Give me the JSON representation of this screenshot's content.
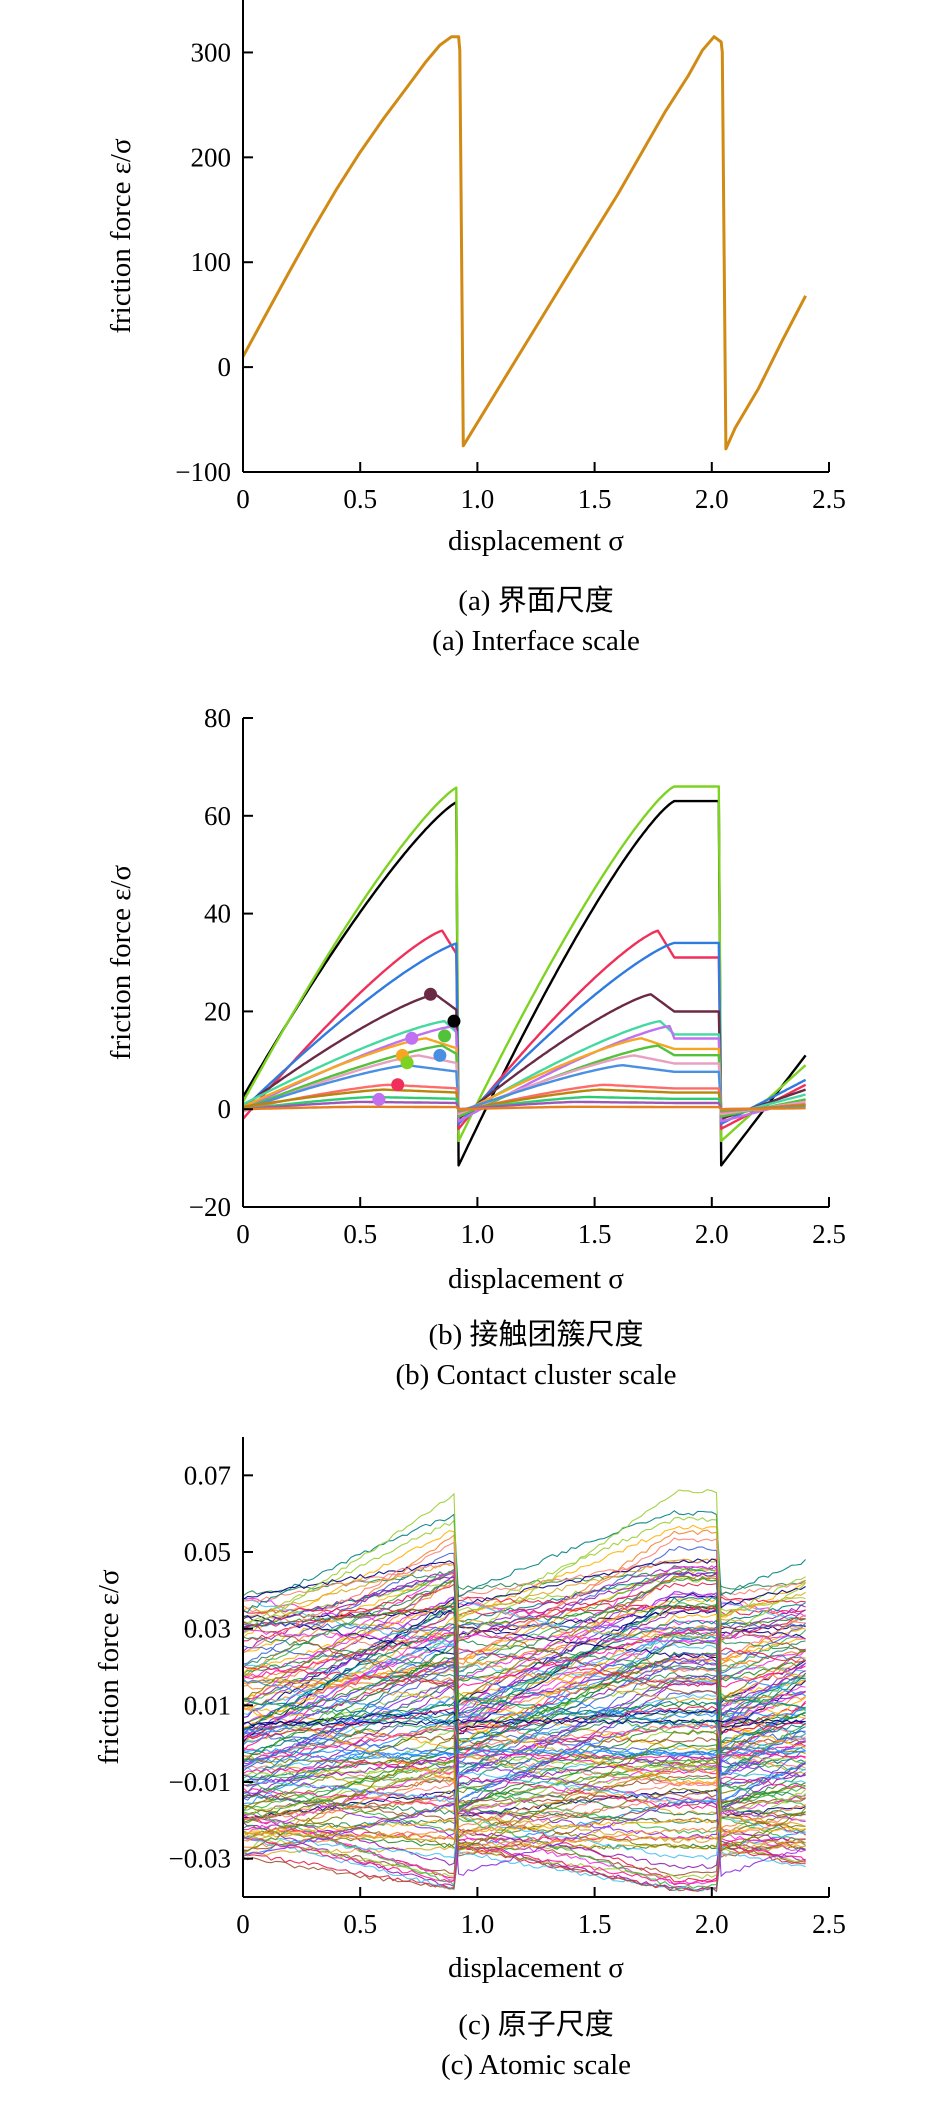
{
  "colors": {
    "panel_a_line": "#D18A14",
    "panel_b_palette": [
      "#000000",
      "#7ED321",
      "#F0305A",
      "#2F7BE0",
      "#6B2A44",
      "#43D9A0",
      "#C070F0",
      "#F5A623",
      "#52C23B",
      "#E8A0C0",
      "#4A90E2",
      "#FF6B6B",
      "#B8860B",
      "#2ECC71",
      "#9B59B6",
      "#E67E22"
    ],
    "panel_c_palette": [
      "#E6194B",
      "#3CB44B",
      "#FFB000",
      "#4363D8",
      "#F58231",
      "#911EB4",
      "#46C0F0",
      "#F032E6",
      "#9ACD32",
      "#FA8072",
      "#008080",
      "#8A2BE2",
      "#A0522D",
      "#2E8B57",
      "#1E90FF",
      "#DAA520",
      "#FF1493",
      "#228B22",
      "#000080",
      "#808000"
    ]
  },
  "chart_data": [
    {
      "type": "line",
      "panel": "a",
      "caption_cn": "(a) 界面尺度",
      "caption_en": "(a) Interface scale",
      "xlabel": "displacement σ",
      "ylabel": "friction force ε/σ",
      "xlim": [
        0,
        2.5
      ],
      "ylim": [
        -100,
        350
      ],
      "xticks": [
        "0",
        "0.5",
        "1.0",
        "1.5",
        "2.0",
        "2.5"
      ],
      "xtick_values": [
        0,
        0.5,
        1.0,
        1.5,
        2.0,
        2.5
      ],
      "yticks": [
        "−100",
        "0",
        "100",
        "200",
        "300"
      ],
      "ytick_values": [
        -100,
        0,
        100,
        200,
        300
      ],
      "series": [
        {
          "x": [
            0,
            0.1,
            0.2,
            0.3,
            0.4,
            0.5,
            0.6,
            0.7,
            0.78,
            0.84,
            0.89,
            0.92,
            0.925,
            0.94,
            1.0,
            1.2,
            1.4,
            1.6,
            1.8,
            1.9,
            1.96,
            2.01,
            2.04,
            2.045,
            2.06,
            2.1,
            2.2,
            2.3,
            2.4
          ],
          "y": [
            10,
            51,
            92,
            132,
            170,
            205,
            237,
            267,
            291,
            307,
            315,
            315,
            302,
            -75,
            -53,
            20,
            93,
            165,
            243,
            278,
            302,
            315,
            310,
            300,
            -78,
            -58,
            -20,
            25,
            68
          ]
        }
      ]
    },
    {
      "type": "line",
      "panel": "b",
      "caption_cn": "(b) 接触团簇尺度",
      "caption_en": "(b) Contact cluster scale",
      "xlabel": "displacement σ",
      "ylabel": "friction force ε/σ",
      "xlim": [
        0,
        2.5
      ],
      "ylim": [
        -20,
        80
      ],
      "xticks": [
        "0",
        "0.5",
        "1.0",
        "1.5",
        "2.0",
        "2.5"
      ],
      "xtick_values": [
        0,
        0.5,
        1.0,
        1.5,
        2.0,
        2.5
      ],
      "yticks": [
        "−20",
        "0",
        "20",
        "40",
        "60",
        "80"
      ],
      "ytick_values": [
        -20,
        0,
        20,
        40,
        60,
        80
      ],
      "period": 1.12,
      "x_end": 2.4,
      "slip_x": 0.92,
      "series": [
        {
          "start": 2.5,
          "peak": 63,
          "peak_x": 0.92,
          "after": -11.5,
          "end": 11
        },
        {
          "start": 1.5,
          "peak": 66,
          "peak_x": 0.92,
          "after": -6.5,
          "end": 9
        },
        {
          "start": -2.0,
          "peak": 36.5,
          "peak_x": 0.85,
          "after": -4.0,
          "end": 5
        },
        {
          "start": 0.0,
          "peak": 34,
          "peak_x": 0.92,
          "after": -3.0,
          "end": 6
        },
        {
          "start": 0.5,
          "peak": 23.5,
          "peak_x": 0.82,
          "after": -2.0,
          "end": 4
        },
        {
          "start": 1.0,
          "peak": 18,
          "peak_x": 0.86,
          "after": -1.5,
          "end": 3
        },
        {
          "start": 0.0,
          "peak": 17,
          "peak_x": 0.9,
          "after": -2.5,
          "end": 2
        },
        {
          "start": 0.5,
          "peak": 14.5,
          "peak_x": 0.78,
          "after": -1.0,
          "end": 1
        },
        {
          "start": 0.0,
          "peak": 13,
          "peak_x": 0.85,
          "after": -1.5,
          "end": 2
        },
        {
          "start": -0.5,
          "peak": 11,
          "peak_x": 0.75,
          "after": -1.0,
          "end": 1.5
        },
        {
          "start": 0.0,
          "peak": 9,
          "peak_x": 0.7,
          "after": -0.5,
          "end": 1
        },
        {
          "start": 0.0,
          "peak": 5.0,
          "peak_x": 0.62,
          "after": -0.5,
          "end": 1
        },
        {
          "start": 0.5,
          "peak": 4.0,
          "peak_x": 0.6,
          "after": -0.3,
          "end": 0.8
        },
        {
          "start": 0.0,
          "peak": 2.5,
          "peak_x": 0.55,
          "after": -0.2,
          "end": 0.5
        },
        {
          "start": 0.0,
          "peak": 1.5,
          "peak_x": 0.5,
          "after": 0.0,
          "end": 0.3
        },
        {
          "start": 0.0,
          "peak": 0.5,
          "peak_x": 0.5,
          "after": 0.0,
          "end": 0.2
        }
      ],
      "markers": [
        {
          "x": 0.8,
          "y": 23.5,
          "color": "#6B2A44"
        },
        {
          "x": 0.9,
          "y": 18,
          "color": "#000000"
        },
        {
          "x": 0.72,
          "y": 14.5,
          "color": "#C070F0"
        },
        {
          "x": 0.86,
          "y": 15,
          "color": "#52C23B"
        },
        {
          "x": 0.68,
          "y": 11,
          "color": "#F5A623"
        },
        {
          "x": 0.84,
          "y": 11,
          "color": "#4A90E2"
        },
        {
          "x": 0.7,
          "y": 9.5,
          "color": "#7ED321"
        },
        {
          "x": 0.66,
          "y": 5,
          "color": "#F0305A"
        },
        {
          "x": 0.58,
          "y": 2,
          "color": "#C070F0"
        }
      ]
    },
    {
      "type": "line",
      "panel": "c",
      "caption_cn": "(c) 原子尺度",
      "caption_en": "(c) Atomic scale",
      "xlabel": "displacement σ",
      "ylabel": "friction force ε/σ",
      "xlim": [
        0,
        2.5
      ],
      "ylim": [
        -0.04,
        0.08
      ],
      "xticks": [
        "0",
        "0.5",
        "1.0",
        "1.5",
        "2.0",
        "2.5"
      ],
      "xtick_values": [
        0,
        0.5,
        1.0,
        1.5,
        2.0,
        2.5
      ],
      "yticks": [
        "−0.03",
        "−0.01",
        "0.01",
        "0.03",
        "0.05",
        "0.07"
      ],
      "ytick_values": [
        -0.03,
        -0.01,
        0.01,
        0.03,
        0.05,
        0.07
      ],
      "period": 1.12,
      "x_end": 2.4,
      "slip_x": 0.92,
      "band": {
        "min": -0.04,
        "max": 0.07,
        "typical_min": -0.03,
        "typical_max": 0.04
      },
      "series_count": 160
    }
  ]
}
